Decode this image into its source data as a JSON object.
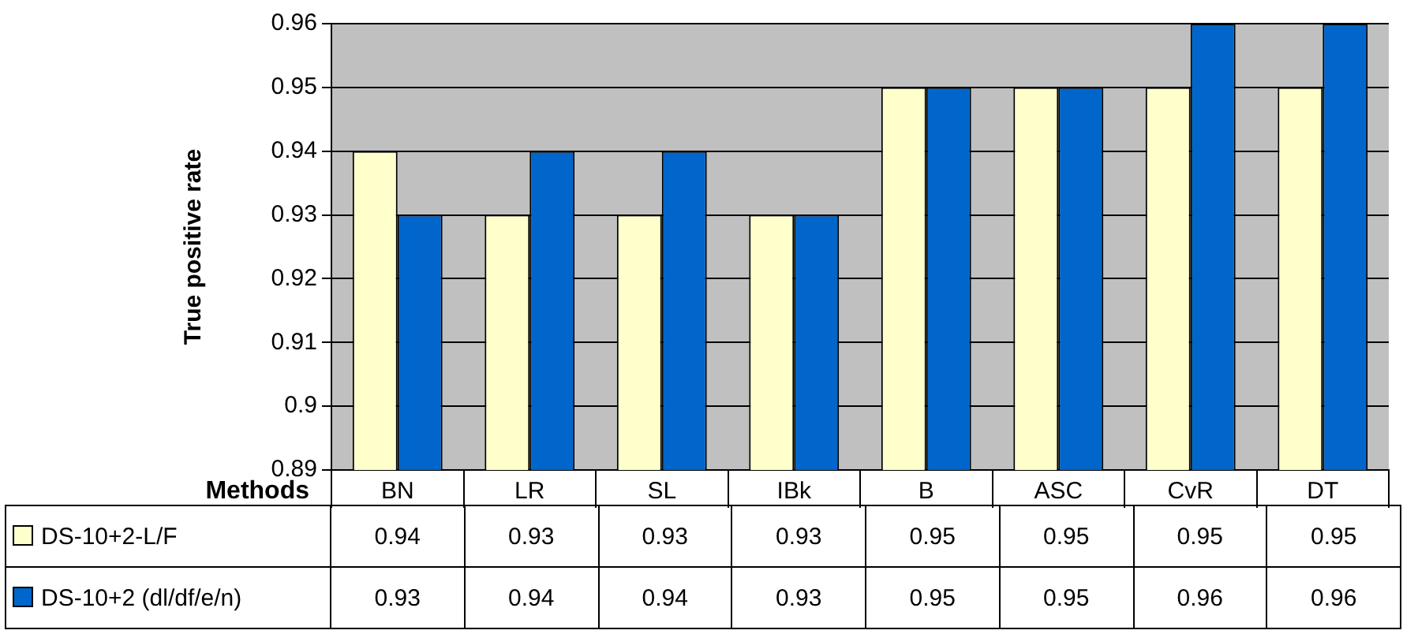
{
  "chart_data": {
    "type": "bar",
    "ylabel": "True positive rate",
    "xlabel": "Methods",
    "categories": [
      "BN",
      "LR",
      "SL",
      "IBk",
      "B",
      "ASC",
      "CvR",
      "DT"
    ],
    "series": [
      {
        "name": "DS-10+2-L/F",
        "color": "#ffffcc",
        "values": [
          0.94,
          0.93,
          0.93,
          0.93,
          0.95,
          0.95,
          0.95,
          0.95
        ]
      },
      {
        "name": "DS-10+2 (dl/df/e/n)",
        "color": "#0066cc",
        "values": [
          0.93,
          0.94,
          0.94,
          0.93,
          0.95,
          0.95,
          0.96,
          0.96
        ]
      }
    ],
    "ylim": [
      0.89,
      0.96
    ],
    "yticks": [
      0.89,
      0.9,
      0.91,
      0.92,
      0.93,
      0.94,
      0.95,
      0.96
    ],
    "grid": "y",
    "legend": "bottom",
    "data_labels": true
  }
}
